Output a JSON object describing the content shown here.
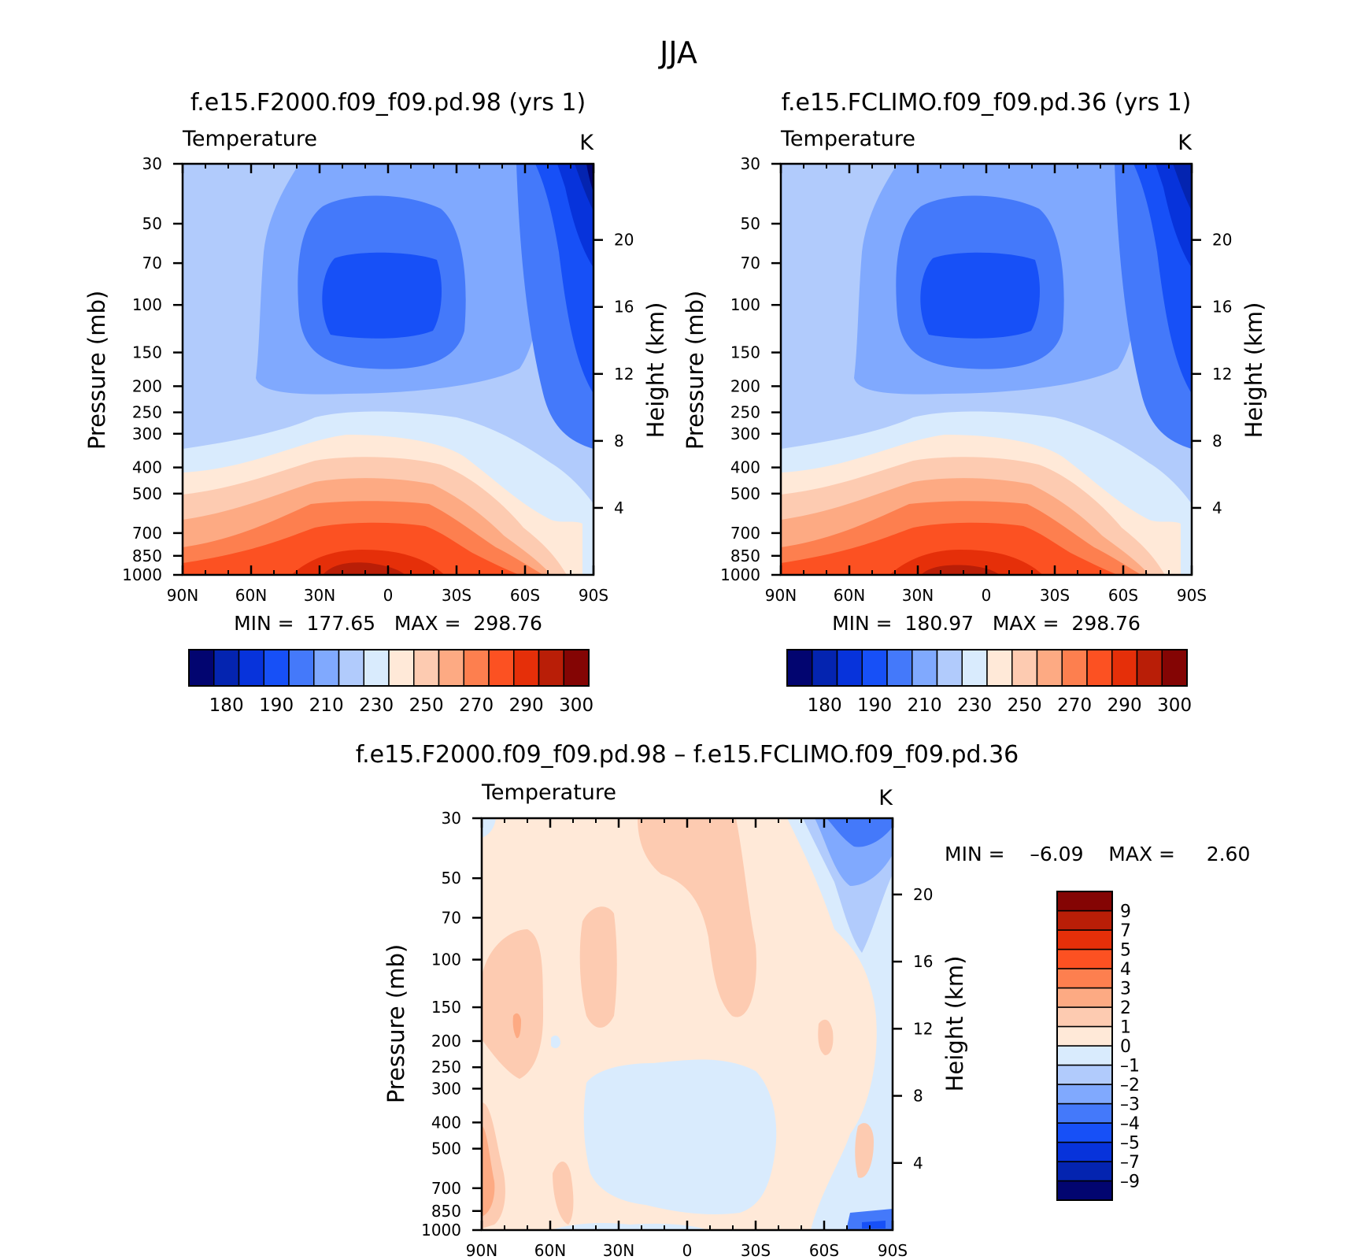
{
  "figure": {
    "title": "JJA"
  },
  "colors": {
    "abs_palette": [
      "#020570",
      "#0424B0",
      "#0733DB",
      "#1750F7",
      "#4479FA",
      "#80A9FE",
      "#B1CBFC",
      "#D9EBFD",
      "#FFE9D8",
      "#FDCBB1",
      "#FDAA83",
      "#FD7F4F",
      "#FC5122",
      "#E52F09",
      "#B91E07",
      "#840504"
    ],
    "diff_palette": [
      "#020570",
      "#0424B0",
      "#0733DB",
      "#1750F7",
      "#4479FA",
      "#80A9FE",
      "#B1CBFC",
      "#D9EBFD",
      "#FFE9D8",
      "#FDCBB1",
      "#FDAA83",
      "#FD7F4F",
      "#FC5122",
      "#E52F09",
      "#B91E07",
      "#840504"
    ]
  },
  "chart_data": [
    {
      "type": "heatmap",
      "panel": "model",
      "title": "f.e15.F2000.f09_f09.pd.98 (yrs  1)",
      "variable_label": "Temperature",
      "units_label": "K",
      "ylabel": "Pressure (mb)",
      "y2label": "Height (km)",
      "x_ticks": [
        90,
        60,
        30,
        0,
        -30,
        -60,
        -90
      ],
      "x_tick_labels": [
        "90N",
        "60N",
        "30N",
        "0",
        "30S",
        "60S",
        "90S"
      ],
      "y_ticks": [
        30,
        50,
        70,
        100,
        150,
        200,
        250,
        300,
        400,
        500,
        700,
        850,
        1000
      ],
      "y2_ticks": [
        4,
        8,
        12,
        16,
        20
      ],
      "xlim": [
        90,
        -90
      ],
      "ylim": [
        30,
        1000
      ],
      "stats_text": "MIN =  177.65   MAX =  298.76",
      "legend_labels": [
        "180",
        "190",
        "210",
        "230",
        "250",
        "270",
        "290",
        "300"
      ],
      "contour_levels": [
        180,
        185,
        190,
        200,
        210,
        220,
        230,
        240,
        250,
        260,
        270,
        280,
        290,
        295,
        300
      ]
    },
    {
      "type": "heatmap",
      "panel": "control",
      "title": "f.e15.FCLIMO.f09_f09.pd.36 (yrs  1)",
      "variable_label": "Temperature",
      "units_label": "K",
      "ylabel": "Pressure (mb)",
      "y2label": "Height (km)",
      "x_ticks": [
        90,
        60,
        30,
        0,
        -30,
        -60,
        -90
      ],
      "x_tick_labels": [
        "90N",
        "60N",
        "30N",
        "0",
        "30S",
        "60S",
        "90S"
      ],
      "y_ticks": [
        30,
        50,
        70,
        100,
        150,
        200,
        250,
        300,
        400,
        500,
        700,
        850,
        1000
      ],
      "y2_ticks": [
        4,
        8,
        12,
        16,
        20
      ],
      "xlim": [
        90,
        -90
      ],
      "ylim": [
        30,
        1000
      ],
      "stats_text": "MIN =  180.97   MAX =  298.76",
      "legend_labels": [
        "180",
        "190",
        "210",
        "230",
        "250",
        "270",
        "290",
        "300"
      ],
      "contour_levels": [
        180,
        185,
        190,
        200,
        210,
        220,
        230,
        240,
        250,
        260,
        270,
        280,
        290,
        295,
        300
      ]
    },
    {
      "type": "heatmap",
      "panel": "difference",
      "title": "f.e15.F2000.f09_f09.pd.98 – f.e15.FCLIMO.f09_f09.pd.36",
      "variable_label": "Temperature",
      "units_label": "K",
      "ylabel": "Pressure (mb)",
      "y2label": "Height (km)",
      "x_ticks": [
        90,
        60,
        30,
        0,
        -30,
        -60,
        -90
      ],
      "x_tick_labels": [
        "90N",
        "60N",
        "30N",
        "0",
        "30S",
        "60S",
        "90S"
      ],
      "y_ticks": [
        30,
        50,
        70,
        100,
        150,
        200,
        250,
        300,
        400,
        500,
        700,
        850,
        1000
      ],
      "y2_ticks": [
        4,
        8,
        12,
        16,
        20
      ],
      "xlim": [
        90,
        -90
      ],
      "ylim": [
        30,
        1000
      ],
      "stats_text": "MIN =    –6.09    MAX =     2.60",
      "legend_labels": [
        "9",
        "7",
        "5",
        "4",
        "3",
        "2",
        "1",
        "0",
        "–1",
        "–2",
        "–3",
        "–4",
        "–5",
        "–7",
        "–9"
      ],
      "contour_levels": [
        -9,
        -7,
        -5,
        -4,
        -3,
        -2,
        -1,
        0,
        1,
        2,
        3,
        4,
        5,
        7,
        9
      ]
    }
  ]
}
